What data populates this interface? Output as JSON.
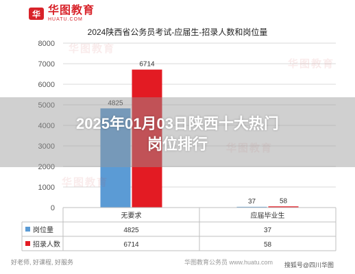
{
  "brand": {
    "name": "华图教育",
    "domain": "HUATU.COM",
    "mark": "华"
  },
  "overlay": {
    "line1": "2025年01月03日陕西十大热门",
    "line2": "岗位排行"
  },
  "footer": {
    "tags": "好老师, 好课程, 好服务",
    "site": "华图教育公务员 www.huatu.com",
    "source": "搜狐号@四川华图"
  },
  "watermark_text": "华图教育",
  "colors": {
    "series1": "#5b9bd5",
    "series2": "#e31b23",
    "grid": "#d9d9d9"
  },
  "chart_data": {
    "type": "bar",
    "title": "2024陕西省公务员考试-应届生-招录人数和岗位量",
    "categories": [
      "无要求",
      "应届毕业生"
    ],
    "series": [
      {
        "name": "岗位量",
        "values": [
          4825,
          37
        ]
      },
      {
        "name": "招录人数",
        "values": [
          6714,
          58
        ]
      }
    ],
    "ylim": [
      0,
      8000
    ],
    "yticks": [
      "0",
      "1000",
      "2000",
      "3000",
      "4000",
      "5000",
      "6000",
      "7000",
      "8000"
    ],
    "grid": true,
    "data_table": true
  }
}
